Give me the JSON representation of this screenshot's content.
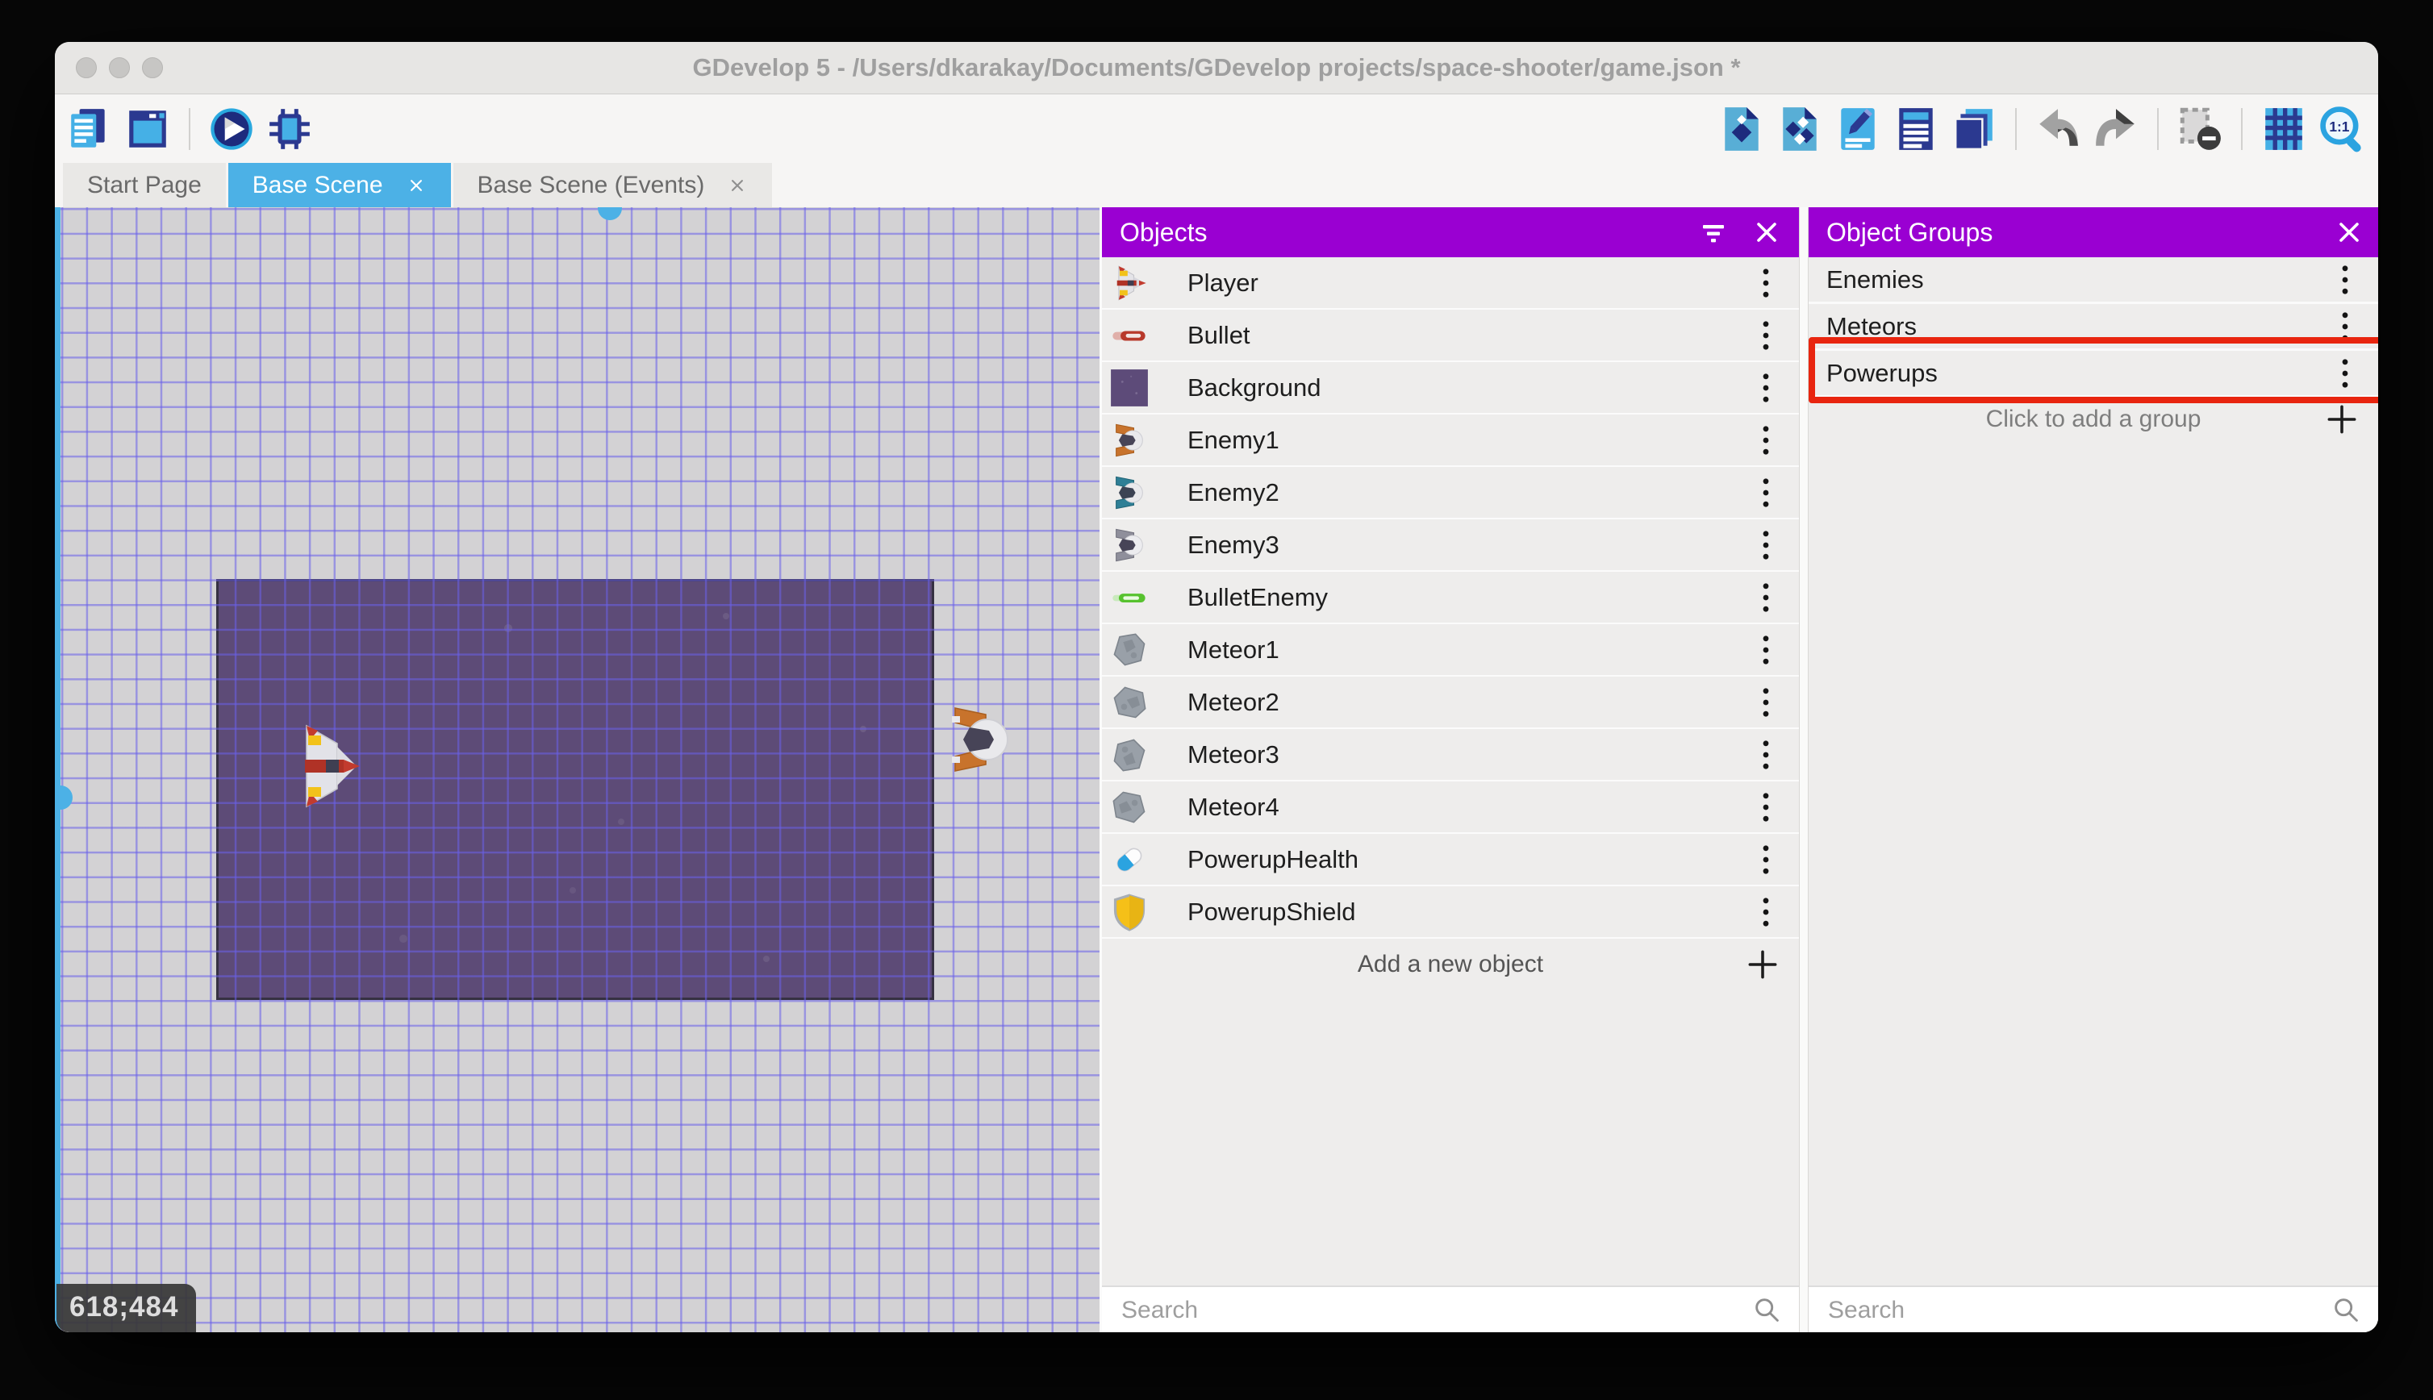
{
  "window": {
    "title": "GDevelop 5 - /Users/dkarakay/Documents/GDevelop projects/space-shooter/game.json *"
  },
  "toolbar": {
    "left_icons": [
      "project-manager-icon",
      "preview-window-icon",
      "divider",
      "play-preview-icon",
      "debug-icon"
    ],
    "right_icons": [
      "add-object-icon",
      "object-groups-icon",
      "properties-icon",
      "instances-list-icon",
      "layers-icon",
      "divider",
      "undo-icon",
      "redo-icon",
      "divider",
      "toggle-mask-icon",
      "divider",
      "grid-icon",
      "zoom-one-to-one-icon"
    ]
  },
  "tabs": [
    {
      "label": "Start Page",
      "active": false,
      "closable": false
    },
    {
      "label": "Base Scene",
      "active": true,
      "closable": true
    },
    {
      "label": "Base Scene (Events)",
      "active": false,
      "closable": true
    }
  ],
  "canvas": {
    "coordinates": "618;484",
    "instances": [
      {
        "name": "Player",
        "sprite": "player-canvas-sprite"
      },
      {
        "name": "Enemy1",
        "sprite": "enemy1-canvas-sprite"
      }
    ]
  },
  "objects_panel": {
    "title": "Objects",
    "search_placeholder": "Search",
    "add_label": "Add a new object",
    "items": [
      {
        "label": "Player",
        "icon": "player-ship-icon"
      },
      {
        "label": "Bullet",
        "icon": "bullet-icon"
      },
      {
        "label": "Background",
        "icon": "background-thumb-icon"
      },
      {
        "label": "Enemy1",
        "icon": "enemy1-ship-icon"
      },
      {
        "label": "Enemy2",
        "icon": "enemy2-ship-icon"
      },
      {
        "label": "Enemy3",
        "icon": "enemy3-ship-icon"
      },
      {
        "label": "BulletEnemy",
        "icon": "bullet-enemy-icon"
      },
      {
        "label": "Meteor1",
        "icon": "meteor1-icon"
      },
      {
        "label": "Meteor2",
        "icon": "meteor2-icon"
      },
      {
        "label": "Meteor3",
        "icon": "meteor3-icon"
      },
      {
        "label": "Meteor4",
        "icon": "meteor4-icon"
      },
      {
        "label": "PowerupHealth",
        "icon": "powerup-health-icon"
      },
      {
        "label": "PowerupShield",
        "icon": "powerup-shield-icon"
      }
    ]
  },
  "groups_panel": {
    "title": "Object Groups",
    "search_placeholder": "Search",
    "add_label": "Click to add a group",
    "items": [
      {
        "label": "Enemies",
        "highlighted": false
      },
      {
        "label": "Meteors",
        "highlighted": false
      },
      {
        "label": "Powerups",
        "highlighted": true
      }
    ]
  },
  "colors": {
    "panel_header_purple": "#9a00d2",
    "active_tab_blue": "#4cb1e6",
    "highlight_red": "#e8250f",
    "grid_line_blue": "#6a60e9",
    "background_object_purple": "#5d4b77"
  }
}
